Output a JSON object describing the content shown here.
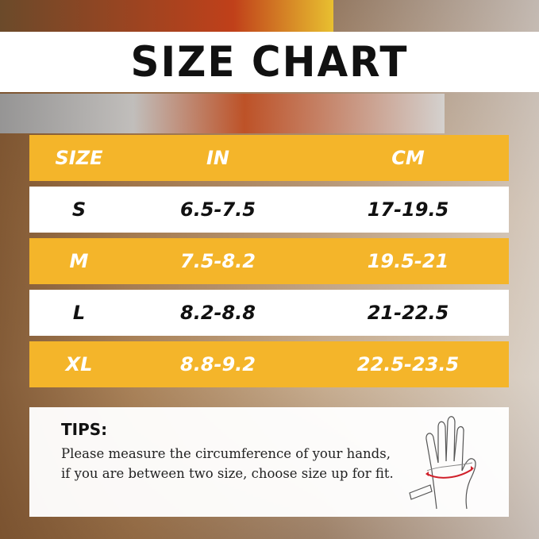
{
  "title": "SIZE CHART",
  "table": {
    "headers": [
      "SIZE",
      "IN",
      "CM"
    ],
    "rows": [
      [
        "S",
        "6.5-7.5",
        "17-19.5"
      ],
      [
        "M",
        "7.5-8.2",
        "19.5-21"
      ],
      [
        "L",
        "8.2-8.8",
        "21-22.5"
      ],
      [
        "XL",
        "8.8-9.2",
        "22.5-23.5"
      ]
    ]
  },
  "tips": {
    "heading": "TIPS:",
    "text": "Please measure the circumference of your hands, if you are between two size, choose size up for fit."
  },
  "colors": {
    "accent": "#f4b52a",
    "measure_line": "#d0202a"
  },
  "icons": [
    "hand-measurement-icon"
  ]
}
